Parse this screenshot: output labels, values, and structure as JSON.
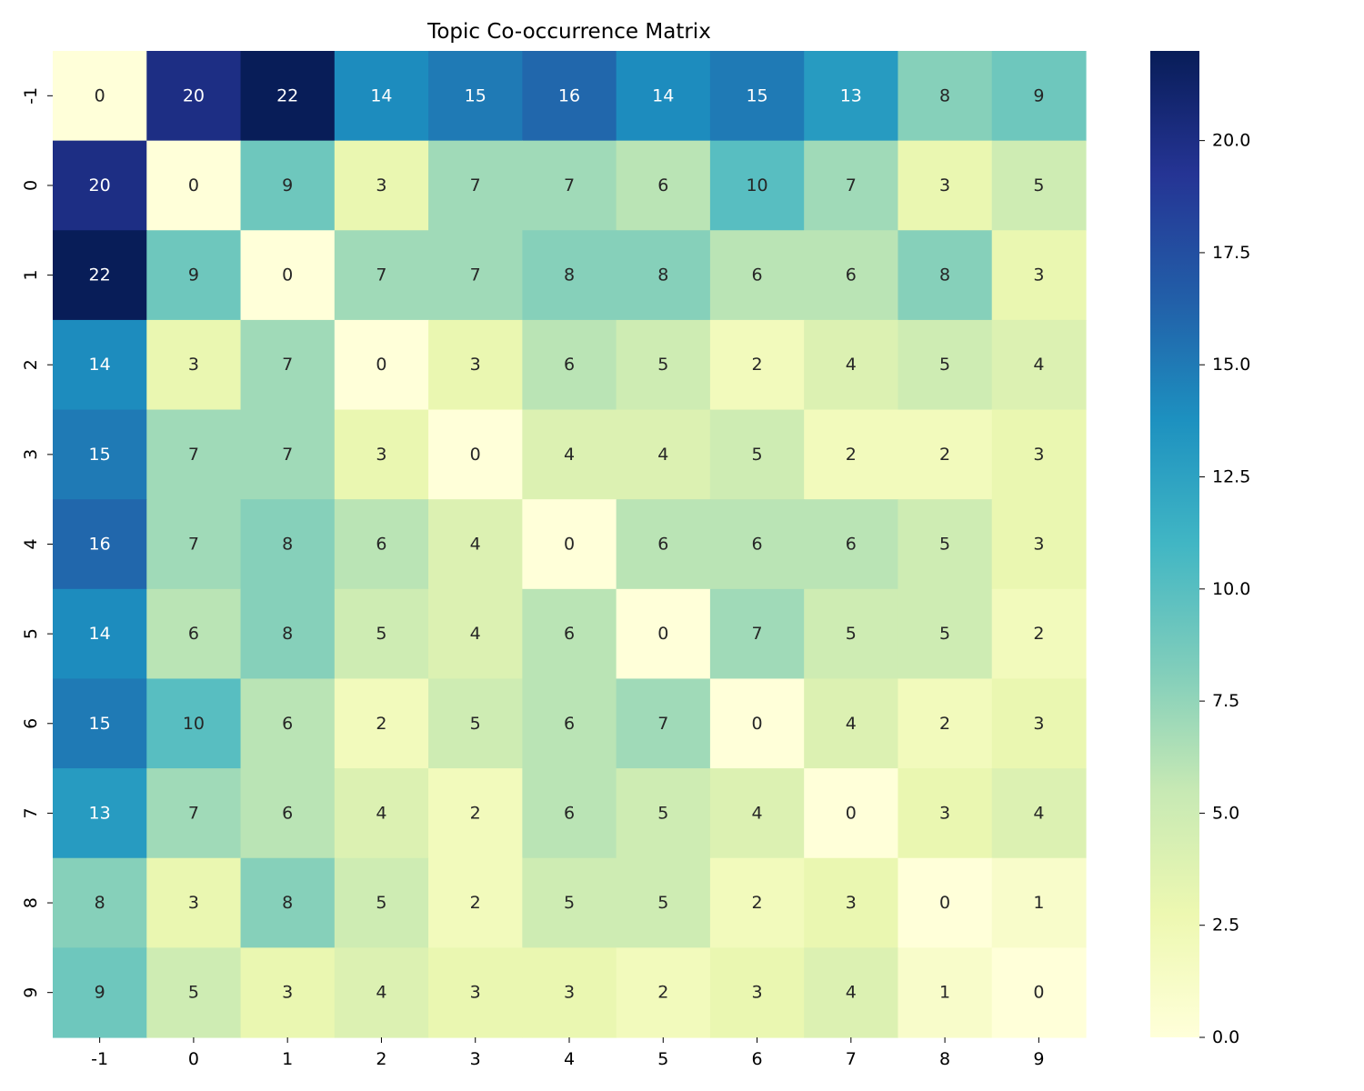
{
  "chart_data": {
    "type": "heatmap",
    "title": "Topic Co-occurrence Matrix",
    "xlabel": "",
    "ylabel": "",
    "x_categories": [
      "-1",
      "0",
      "1",
      "2",
      "3",
      "4",
      "5",
      "6",
      "7",
      "8",
      "9"
    ],
    "y_categories": [
      "-1",
      "0",
      "1",
      "2",
      "3",
      "4",
      "5",
      "6",
      "7",
      "8",
      "9"
    ],
    "values": [
      [
        0,
        20,
        22,
        14,
        15,
        16,
        14,
        15,
        13,
        8,
        9
      ],
      [
        20,
        0,
        9,
        3,
        7,
        7,
        6,
        10,
        7,
        3,
        5
      ],
      [
        22,
        9,
        0,
        7,
        7,
        8,
        8,
        6,
        6,
        8,
        3
      ],
      [
        14,
        3,
        7,
        0,
        3,
        6,
        5,
        2,
        4,
        5,
        4
      ],
      [
        15,
        7,
        7,
        3,
        0,
        4,
        4,
        5,
        2,
        2,
        3
      ],
      [
        16,
        7,
        8,
        6,
        4,
        0,
        6,
        6,
        6,
        5,
        3
      ],
      [
        14,
        6,
        8,
        5,
        4,
        6,
        0,
        7,
        5,
        5,
        2
      ],
      [
        15,
        10,
        6,
        2,
        5,
        6,
        7,
        0,
        4,
        2,
        3
      ],
      [
        13,
        7,
        6,
        4,
        2,
        6,
        5,
        4,
        0,
        3,
        4
      ],
      [
        8,
        3,
        8,
        5,
        2,
        5,
        5,
        2,
        3,
        0,
        1
      ],
      [
        9,
        5,
        3,
        4,
        3,
        3,
        2,
        3,
        4,
        1,
        0
      ]
    ],
    "colormap": "YlGnBu",
    "vmin": 0,
    "vmax": 22,
    "annotate": true,
    "colorbar": {
      "ticks": [
        0.0,
        2.5,
        5.0,
        7.5,
        10.0,
        12.5,
        15.0,
        17.5,
        20.0
      ],
      "tick_labels": [
        "0.0",
        "2.5",
        "5.0",
        "7.5",
        "10.0",
        "12.5",
        "15.0",
        "17.5",
        "20.0"
      ]
    }
  }
}
